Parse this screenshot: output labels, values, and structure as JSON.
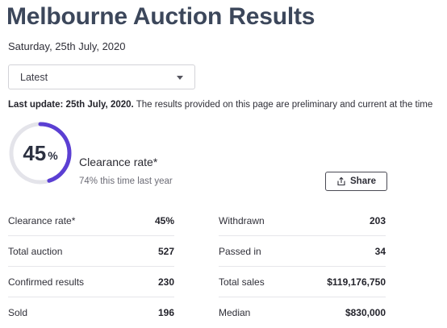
{
  "page": {
    "title": "Melbourne Auction Results",
    "date": "Saturday, 25th July, 2020"
  },
  "filter": {
    "selected": "Latest"
  },
  "update": {
    "label": "Last update: 25th July, 2020.",
    "text": " The results provided on this page are preliminary and current at the time"
  },
  "clearance": {
    "percent_value": 45,
    "percent_number": "45",
    "percent_symbol": "%",
    "label": "Clearance rate*",
    "last_year": "74% this time last year",
    "ring_color": "#5b3fd3",
    "track_color": "#e4e4ea"
  },
  "share": {
    "label": "Share",
    "icon": "share-icon"
  },
  "stats_left": [
    {
      "label": "Clearance rate*",
      "value": "45%"
    },
    {
      "label": "Total auction",
      "value": "527"
    },
    {
      "label": "Confirmed results",
      "value": "230"
    },
    {
      "label": "Sold",
      "value": "196"
    }
  ],
  "stats_right": [
    {
      "label": "Withdrawn",
      "value": "203"
    },
    {
      "label": "Passed in",
      "value": "34"
    },
    {
      "label": "Total sales",
      "value": "$119,176,750"
    },
    {
      "label": "Median",
      "value": "$830,000"
    }
  ]
}
